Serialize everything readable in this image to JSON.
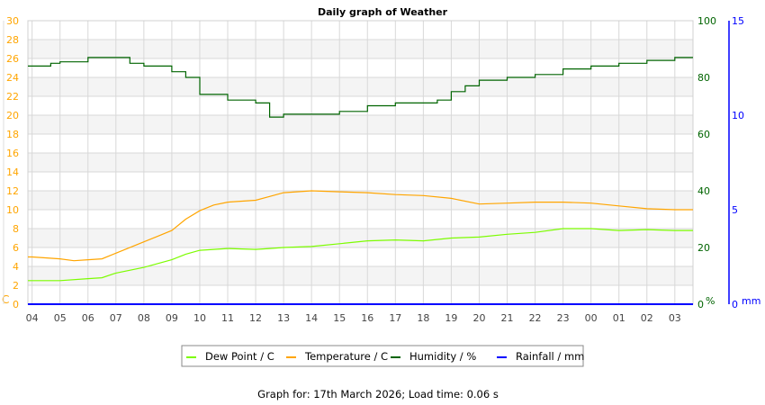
{
  "chart_data": {
    "type": "line",
    "title": "Daily graph of Weather",
    "footer": "Graph for: 17th March 2026; Load time: 0.06 s",
    "x_ticks": [
      "04",
      "05",
      "06",
      "07",
      "08",
      "09",
      "10",
      "11",
      "12",
      "13",
      "14",
      "15",
      "16",
      "17",
      "18",
      "19",
      "20",
      "21",
      "22",
      "23",
      "00",
      "01",
      "02",
      "03"
    ],
    "xlim": [
      "03:51",
      "03:39"
    ],
    "grid": true,
    "legend_placement": "bottom",
    "axes": {
      "temperature": {
        "unit_label": "C",
        "ylim": [
          0,
          30
        ],
        "ticks": [
          "0",
          "2",
          "4",
          "6",
          "8",
          "10",
          "12",
          "14",
          "16",
          "18",
          "20",
          "22",
          "24",
          "26",
          "28",
          "30"
        ],
        "color": "#FFA500"
      },
      "humidity": {
        "unit_label": "%",
        "ylim": [
          0,
          100
        ],
        "ticks": [
          "0",
          "20",
          "40",
          "60",
          "80",
          "100"
        ],
        "color": "#006400"
      },
      "rainfall": {
        "unit_label": "mm",
        "ylim": [
          0,
          15
        ],
        "ticks": [
          "0",
          "5",
          "10",
          "15"
        ],
        "color": "#0000FF"
      }
    },
    "series": [
      {
        "name": "Dew Point / C",
        "axis": "temperature",
        "color": "#7CFC00",
        "x": [
          "03:51",
          "04:00",
          "05:00",
          "06:00",
          "06:30",
          "07:00",
          "08:00",
          "09:00",
          "09:30",
          "10:00",
          "11:00",
          "12:00",
          "12:30",
          "13:00",
          "14:00",
          "15:00",
          "16:00",
          "17:00",
          "18:00",
          "19:00",
          "20:00",
          "21:00",
          "22:00",
          "23:00",
          "00:00",
          "01:00",
          "02:00",
          "03:00",
          "03:39"
        ],
        "values": [
          2.5,
          2.5,
          2.5,
          2.7,
          2.8,
          3.3,
          3.9,
          4.7,
          5.3,
          5.7,
          5.9,
          5.8,
          5.9,
          6.0,
          6.1,
          6.4,
          6.7,
          6.8,
          6.7,
          7.0,
          7.1,
          7.4,
          7.6,
          8.0,
          8.0,
          7.8,
          7.9,
          7.8,
          7.8
        ]
      },
      {
        "name": "Temperature / C",
        "axis": "temperature",
        "color": "#FFA500",
        "x": [
          "03:51",
          "04:00",
          "05:00",
          "05:30",
          "06:00",
          "06:30",
          "07:00",
          "08:00",
          "08:30",
          "09:00",
          "09:30",
          "10:00",
          "10:30",
          "11:00",
          "12:00",
          "12:30",
          "13:00",
          "14:00",
          "15:00",
          "16:00",
          "17:00",
          "18:00",
          "19:00",
          "20:00",
          "21:00",
          "22:00",
          "23:00",
          "00:00",
          "01:00",
          "02:00",
          "03:00",
          "03:39"
        ],
        "values": [
          5.0,
          5.0,
          4.8,
          4.6,
          4.7,
          4.8,
          5.4,
          6.6,
          7.2,
          7.8,
          9.0,
          9.9,
          10.5,
          10.8,
          11.0,
          11.4,
          11.8,
          12.0,
          11.9,
          11.8,
          11.6,
          11.5,
          11.2,
          10.6,
          10.7,
          10.8,
          10.8,
          10.7,
          10.4,
          10.1,
          10.0,
          10.0
        ]
      },
      {
        "name": "Humidity / %",
        "axis": "humidity",
        "color": "#006400",
        "step": true,
        "x": [
          "03:51",
          "04:40",
          "05:00",
          "06:00",
          "07:00",
          "07:30",
          "08:00",
          "09:00",
          "09:30",
          "10:00",
          "11:00",
          "12:00",
          "12:30",
          "13:00",
          "14:00",
          "15:00",
          "16:00",
          "17:00",
          "18:00",
          "18:30",
          "19:00",
          "19:30",
          "20:00",
          "21:00",
          "22:00",
          "23:00",
          "00:00",
          "01:00",
          "02:00",
          "03:00",
          "03:39"
        ],
        "values": [
          84,
          85,
          85.5,
          87,
          87,
          85,
          84,
          82,
          80,
          74,
          72,
          71,
          66,
          67,
          67,
          68,
          70,
          71,
          71,
          72,
          75,
          77,
          79,
          80,
          81,
          83,
          84,
          85,
          86,
          87,
          87
        ]
      },
      {
        "name": "Rainfall / mm",
        "axis": "rainfall",
        "color": "#0000FF",
        "x": [
          "03:51",
          "03:39"
        ],
        "values": [
          0,
          0
        ]
      }
    ]
  }
}
